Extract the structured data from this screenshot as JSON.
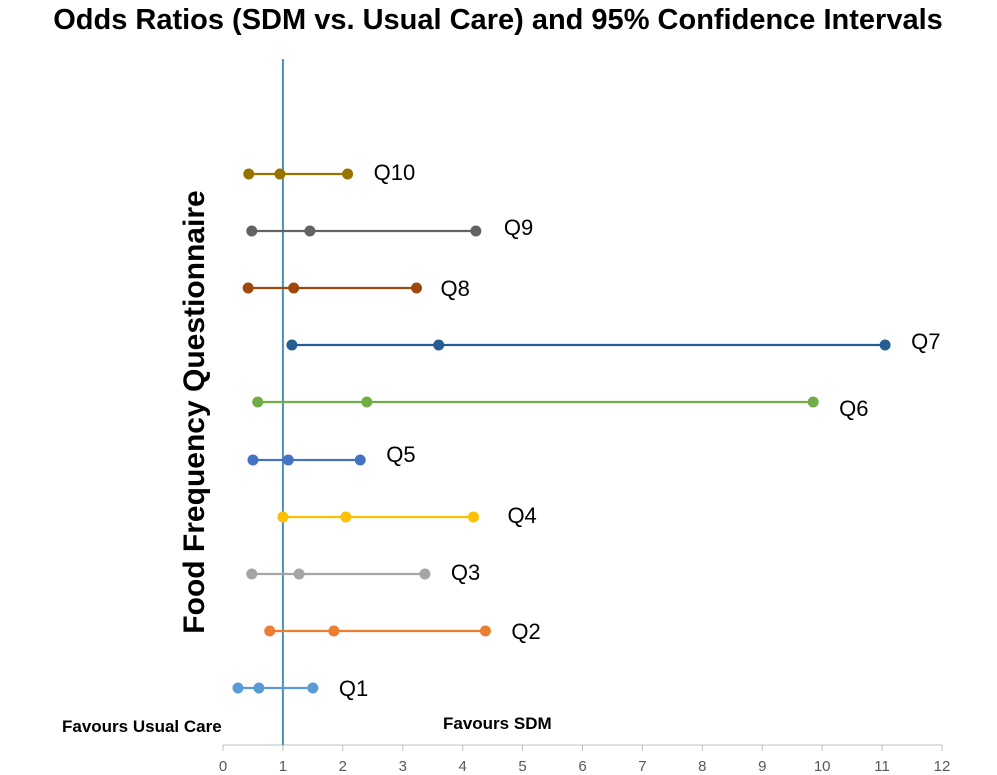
{
  "chart_data": {
    "type": "scatter",
    "title": "Odds Ratios (SDM vs. Usual Care) and 95% Confidence Intervals",
    "ylabel": "Food Frequency Questionnaire",
    "xlabel": "",
    "xlim": [
      0,
      12
    ],
    "x_ticks": [
      "0",
      "1",
      "2",
      "3",
      "4",
      "5",
      "6",
      "7",
      "8",
      "9",
      "10",
      "11",
      "12"
    ],
    "reference_line": 1,
    "annotations": {
      "left": "Favours Usual Care",
      "right": "Favours SDM"
    },
    "series": [
      {
        "name": "Q1",
        "lower": 0.25,
        "or": 0.6,
        "upper": 1.5,
        "color": "#5b9bd5"
      },
      {
        "name": "Q2",
        "lower": 0.78,
        "or": 1.85,
        "upper": 4.38,
        "color": "#ed7d31"
      },
      {
        "name": "Q3",
        "lower": 0.48,
        "or": 1.27,
        "upper": 3.37,
        "color": "#a5a5a5"
      },
      {
        "name": "Q4",
        "lower": 1.0,
        "or": 2.05,
        "upper": 4.18,
        "color": "#ffc000"
      },
      {
        "name": "Q5",
        "lower": 0.5,
        "or": 1.09,
        "upper": 2.29,
        "color": "#4472c4"
      },
      {
        "name": "Q6",
        "lower": 0.58,
        "or": 2.4,
        "upper": 9.85,
        "color": "#70ad47"
      },
      {
        "name": "Q7",
        "lower": 1.15,
        "or": 3.6,
        "upper": 11.05,
        "color": "#255e91"
      },
      {
        "name": "Q8",
        "lower": 0.42,
        "or": 1.18,
        "upper": 3.23,
        "color": "#9e480e"
      },
      {
        "name": "Q9",
        "lower": 0.48,
        "or": 1.45,
        "upper": 4.22,
        "color": "#636363"
      },
      {
        "name": "Q10",
        "lower": 0.43,
        "or": 0.95,
        "upper": 2.08,
        "color": "#997300"
      }
    ]
  }
}
